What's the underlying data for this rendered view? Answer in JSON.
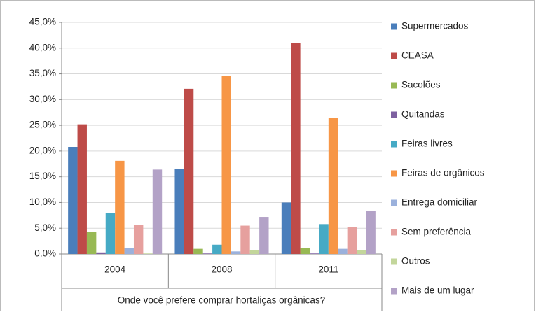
{
  "chart_data": {
    "type": "bar",
    "x_label": "Onde você prefere comprar hortaliças orgânicas?",
    "categories": [
      "2004",
      "2008",
      "2011"
    ],
    "series": [
      {
        "name": "Supermercados",
        "color": "#4a7ebb",
        "values": [
          20.8,
          16.5,
          10.0
        ]
      },
      {
        "name": "CEASA",
        "color": "#be4b48",
        "values": [
          25.2,
          32.1,
          41.0
        ]
      },
      {
        "name": "Sacolões",
        "color": "#98b954",
        "values": [
          4.3,
          1.0,
          1.2
        ]
      },
      {
        "name": "Quitandas",
        "color": "#7d60a0",
        "values": [
          0.3,
          0.1,
          0.1
        ]
      },
      {
        "name": "Feiras livres",
        "color": "#46aac5",
        "values": [
          8.0,
          1.8,
          5.8
        ]
      },
      {
        "name": "Feiras de orgânicos",
        "color": "#f79646",
        "values": [
          18.1,
          34.6,
          26.5
        ]
      },
      {
        "name": "Entrega domiciliar",
        "color": "#9bb1dc",
        "values": [
          1.1,
          0.5,
          1.0
        ]
      },
      {
        "name": "Sem preferência",
        "color": "#e6a09e",
        "values": [
          5.7,
          5.5,
          5.3
        ]
      },
      {
        "name": "Outros",
        "color": "#c3d69b",
        "values": [
          0.1,
          0.7,
          0.7
        ]
      },
      {
        "name": "Mais de um lugar",
        "color": "#b3a2c7",
        "values": [
          16.4,
          7.2,
          8.3
        ]
      }
    ],
    "ylim": [
      0,
      45
    ],
    "yticks": [
      {
        "value": 0,
        "label": "0,0%"
      },
      {
        "value": 5,
        "label": "5,0%"
      },
      {
        "value": 10,
        "label": "10,0%"
      },
      {
        "value": 15,
        "label": "15,0%"
      },
      {
        "value": 20,
        "label": "20,0%"
      },
      {
        "value": 25,
        "label": "25,0%"
      },
      {
        "value": 30,
        "label": "30,0%"
      },
      {
        "value": 35,
        "label": "35,0%"
      },
      {
        "value": 40,
        "label": "40,0%"
      },
      {
        "value": 45,
        "label": "45,0%"
      }
    ],
    "grid": true,
    "legend": "right"
  }
}
